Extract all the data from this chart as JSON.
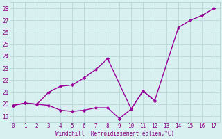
{
  "line1_x": [
    0,
    1,
    2,
    3,
    4,
    5,
    6,
    7,
    8,
    9,
    10,
    11,
    12
  ],
  "line1_y": [
    19.9,
    20.1,
    20.0,
    19.9,
    19.5,
    19.4,
    19.5,
    19.7,
    19.7,
    18.8,
    19.6,
    21.1,
    20.3
  ],
  "line2_x": [
    0,
    1,
    2,
    3,
    4,
    5,
    6,
    7,
    8,
    10,
    11,
    12,
    14,
    15,
    16,
    17
  ],
  "line2_y": [
    19.9,
    20.1,
    20.0,
    21.0,
    21.5,
    21.6,
    22.2,
    22.9,
    23.8,
    19.6,
    21.1,
    20.3,
    26.4,
    27.0,
    27.4,
    28.0
  ],
  "xlim": [
    -0.3,
    17.5
  ],
  "ylim": [
    18.5,
    28.5
  ],
  "yticks": [
    19,
    20,
    21,
    22,
    23,
    24,
    25,
    26,
    27,
    28
  ],
  "xticks": [
    0,
    1,
    2,
    3,
    4,
    5,
    6,
    7,
    8,
    9,
    10,
    11,
    12,
    13,
    14,
    15,
    16,
    17
  ],
  "line_color": "#990099",
  "bg_color": "#d8f0f0",
  "grid_color": "#b8d8d8",
  "xlabel": "Windchill (Refroidissement éolien,°C)",
  "marker": "D",
  "marker_size": 2.2,
  "line_width": 1.0,
  "tick_color": "#880088",
  "tick_fontsize": 5.5,
  "xlabel_fontsize": 5.5
}
